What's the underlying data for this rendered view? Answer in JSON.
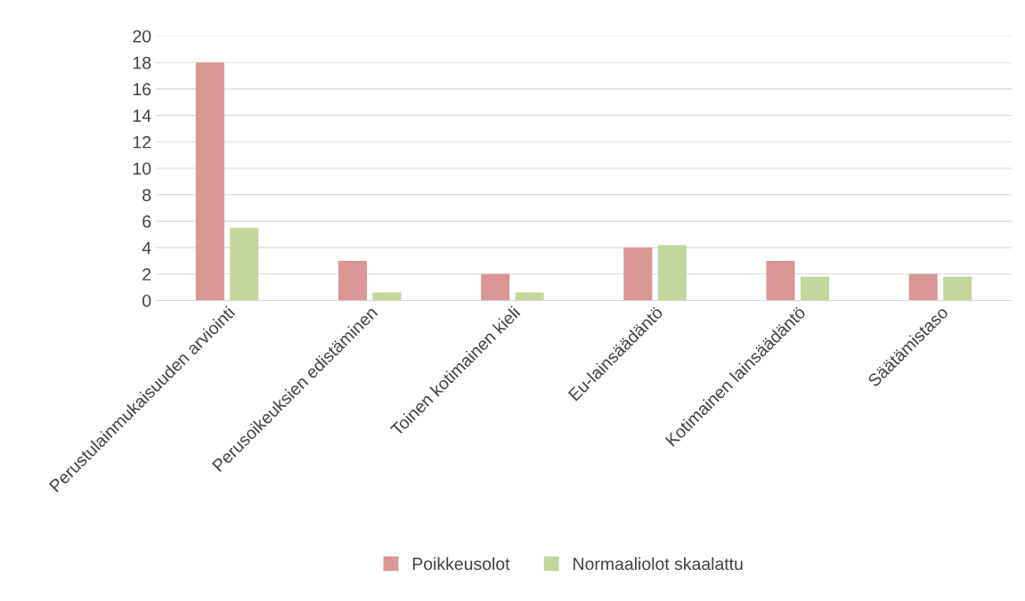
{
  "chart_data": {
    "type": "bar",
    "categories": [
      "Perustulainmukaisuuden arviointi",
      "Perusoikeuksien edistäminen",
      "Toinen kotimainen kieli",
      "Eu-lainsäädäntö",
      "Kotimainen lainsäädäntö",
      "Säätämistaso"
    ],
    "series": [
      {
        "name": "Poikkeusolot",
        "color": "#d99694",
        "values": [
          18,
          3,
          2,
          4,
          3,
          2
        ]
      },
      {
        "name": "Normaaliolot skaalattu",
        "color": "#c3d69b",
        "values": [
          5.5,
          0.6,
          0.6,
          4.2,
          1.8,
          1.8
        ]
      }
    ],
    "ylim": [
      0,
      20
    ],
    "yticks": [
      0,
      2,
      4,
      6,
      8,
      10,
      12,
      14,
      16,
      18,
      20
    ],
    "grid": "y",
    "legend": "bottom"
  }
}
